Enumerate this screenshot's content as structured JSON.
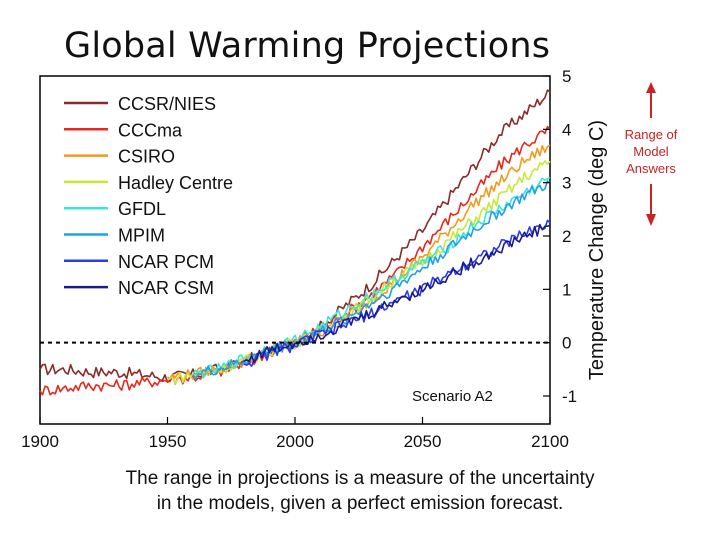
{
  "title": "Global Warming Projections",
  "caption": {
    "line1": "The range in projections is a measure of the uncertainty",
    "line2": "in the models, given a perfect emission forecast."
  },
  "range_annotation": [
    "Range of",
    "Model",
    "Answers"
  ],
  "colors": {
    "range_arrow": "#cc2222",
    "zero_line": "#000000"
  },
  "chart_data": {
    "type": "line",
    "title": "Global Warming Projections",
    "xlabel": "",
    "ylabel": "Temperature Change (deg C)",
    "xlim": [
      1900,
      2100
    ],
    "ylim": [
      -1.3,
      5
    ],
    "xticks": [
      1900,
      1950,
      2000,
      2050,
      2100
    ],
    "yticks": [
      -1,
      0,
      1,
      2,
      3,
      4,
      5
    ],
    "y_axis_side": "right",
    "annotation": "Scenario A2",
    "reference_line": {
      "y": 0,
      "style": "dashed"
    },
    "legend_position": "top-left",
    "series": [
      {
        "name": "CCSR/NIES",
        "color": "#8b2a2a",
        "x": [
          1900,
          1910,
          1920,
          1930,
          1940,
          1950,
          1960,
          1970,
          1980,
          1990,
          2000,
          2010,
          2020,
          2030,
          2040,
          2050,
          2060,
          2070,
          2080,
          2090,
          2100
        ],
        "y": [
          -0.5,
          -0.5,
          -0.55,
          -0.55,
          -0.6,
          -0.65,
          -0.6,
          -0.5,
          -0.35,
          -0.15,
          0.0,
          0.3,
          0.7,
          1.1,
          1.6,
          2.1,
          2.7,
          3.3,
          3.9,
          4.3,
          4.7
        ]
      },
      {
        "name": "CCCma",
        "color": "#e8281c",
        "x": [
          1900,
          1910,
          1920,
          1930,
          1940,
          1950,
          1960,
          1970,
          1980,
          1990,
          2000,
          2010,
          2020,
          2030,
          2040,
          2050,
          2060,
          2070,
          2080,
          2090,
          2100
        ],
        "y": [
          -0.9,
          -0.85,
          -0.8,
          -0.8,
          -0.75,
          -0.7,
          -0.65,
          -0.55,
          -0.4,
          -0.2,
          0.0,
          0.25,
          0.55,
          0.9,
          1.3,
          1.8,
          2.3,
          2.8,
          3.3,
          3.7,
          4.0
        ]
      },
      {
        "name": "CSIRO",
        "color": "#f39a1e",
        "x": [
          1950,
          1960,
          1970,
          1980,
          1990,
          2000,
          2010,
          2020,
          2030,
          2040,
          2050,
          2060,
          2070,
          2080,
          2090,
          2100
        ],
        "y": [
          -0.65,
          -0.6,
          -0.5,
          -0.35,
          -0.15,
          0.0,
          0.2,
          0.5,
          0.8,
          1.2,
          1.6,
          2.1,
          2.6,
          3.0,
          3.4,
          3.7
        ]
      },
      {
        "name": "Hadley Centre",
        "color": "#c8e836",
        "x": [
          1950,
          1960,
          1970,
          1980,
          1990,
          2000,
          2010,
          2020,
          2030,
          2040,
          2050,
          2060,
          2070,
          2080,
          2090,
          2100
        ],
        "y": [
          -0.7,
          -0.6,
          -0.5,
          -0.35,
          -0.15,
          0.0,
          0.2,
          0.5,
          0.85,
          1.2,
          1.5,
          1.9,
          2.3,
          2.7,
          3.1,
          3.4
        ]
      },
      {
        "name": "GFDL",
        "color": "#3ce6d4",
        "x": [
          1960,
          1970,
          1980,
          1990,
          2000,
          2010,
          2020,
          2030,
          2040,
          2050,
          2060,
          2070,
          2080,
          2090,
          2100
        ],
        "y": [
          -0.6,
          -0.5,
          -0.3,
          -0.1,
          0.05,
          0.3,
          0.6,
          0.9,
          1.2,
          1.5,
          1.8,
          2.2,
          2.5,
          2.8,
          3.1
        ]
      },
      {
        "name": "MPIM",
        "color": "#1ea0f0",
        "x": [
          1960,
          1970,
          1980,
          1990,
          2000,
          2010,
          2020,
          2030,
          2040,
          2050,
          2060,
          2070,
          2080,
          2090,
          2100
        ],
        "y": [
          -0.6,
          -0.5,
          -0.35,
          -0.15,
          0.0,
          0.2,
          0.45,
          0.75,
          1.05,
          1.4,
          1.75,
          2.1,
          2.45,
          2.75,
          3.0
        ]
      },
      {
        "name": "NCAR PCM",
        "color": "#2a3cf0",
        "x": [
          1980,
          1990,
          2000,
          2010,
          2020,
          2030,
          2040,
          2050,
          2060,
          2070,
          2080,
          2090,
          2100
        ],
        "y": [
          -0.4,
          -0.2,
          -0.05,
          0.15,
          0.35,
          0.55,
          0.8,
          1.0,
          1.3,
          1.55,
          1.8,
          2.05,
          2.25
        ]
      },
      {
        "name": "NCAR CSM",
        "color": "#1a1a8c",
        "x": [
          1980,
          1990,
          2000,
          2010,
          2020,
          2030,
          2040,
          2050,
          2060,
          2070,
          2080,
          2090,
          2100
        ],
        "y": [
          -0.35,
          -0.15,
          0.0,
          0.15,
          0.35,
          0.55,
          0.8,
          1.0,
          1.25,
          1.5,
          1.75,
          2.0,
          2.2
        ]
      }
    ]
  }
}
